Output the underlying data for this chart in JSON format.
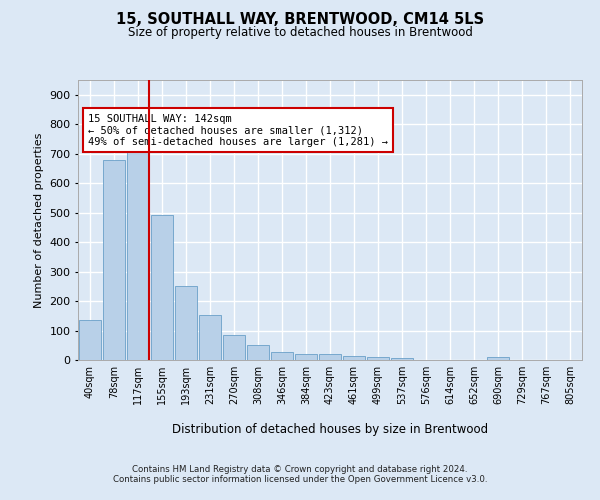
{
  "title_line1": "15, SOUTHALL WAY, BRENTWOOD, CM14 5LS",
  "title_line2": "Size of property relative to detached houses in Brentwood",
  "xlabel": "Distribution of detached houses by size in Brentwood",
  "ylabel": "Number of detached properties",
  "bar_labels": [
    "40sqm",
    "78sqm",
    "117sqm",
    "155sqm",
    "193sqm",
    "231sqm",
    "270sqm",
    "308sqm",
    "346sqm",
    "384sqm",
    "423sqm",
    "461sqm",
    "499sqm",
    "537sqm",
    "576sqm",
    "614sqm",
    "652sqm",
    "690sqm",
    "729sqm",
    "767sqm",
    "805sqm"
  ],
  "bar_values": [
    137,
    678,
    710,
    493,
    251,
    152,
    85,
    51,
    26,
    20,
    20,
    12,
    10,
    8,
    0,
    0,
    0,
    10,
    0,
    0,
    0
  ],
  "bar_color": "#b8d0e8",
  "bar_edge_color": "#6aa0c8",
  "vline_color": "#cc0000",
  "vline_x_index": 2,
  "annotation_text": "15 SOUTHALL WAY: 142sqm\n← 50% of detached houses are smaller (1,312)\n49% of semi-detached houses are larger (1,281) →",
  "annotation_box_color": "#ffffff",
  "annotation_box_edge": "#cc0000",
  "ylim": [
    0,
    950
  ],
  "yticks": [
    0,
    100,
    200,
    300,
    400,
    500,
    600,
    700,
    800,
    900
  ],
  "bg_color": "#dce8f5",
  "plot_bg_color": "#dce8f5",
  "grid_color": "#ffffff",
  "footer": "Contains HM Land Registry data © Crown copyright and database right 2024.\nContains public sector information licensed under the Open Government Licence v3.0."
}
